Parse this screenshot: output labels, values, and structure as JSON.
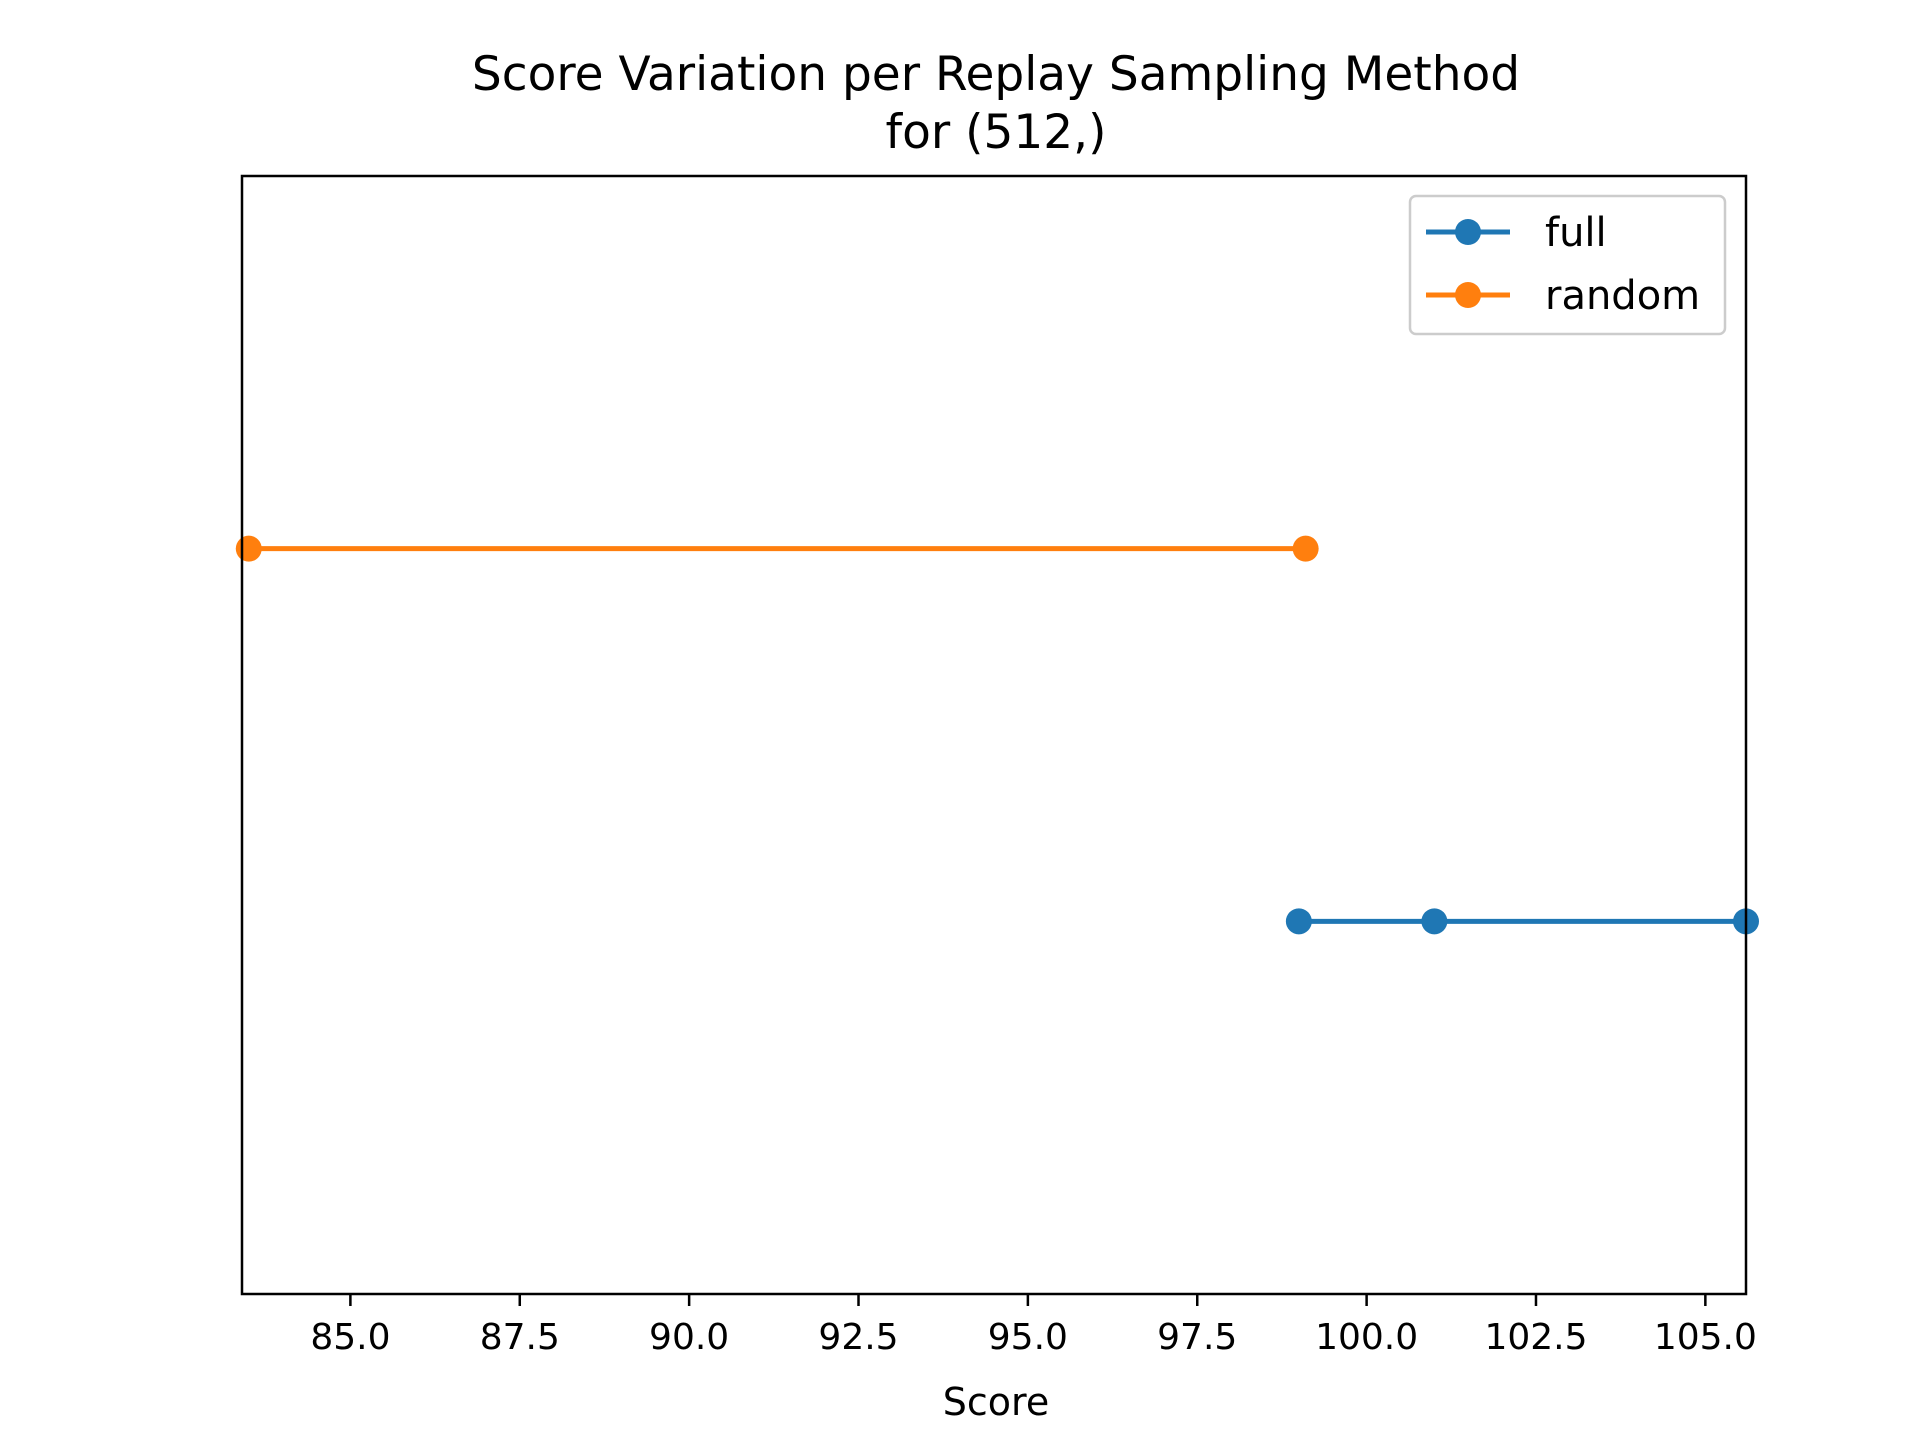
{
  "chart_data": {
    "type": "line",
    "title": "Score Variation per Replay Sampling Method",
    "subtitle": "for (512,)",
    "xlabel": "Score",
    "ylabel": "",
    "xlim": [
      83.4,
      105.6
    ],
    "xticks": [
      85.0,
      87.5,
      90.0,
      92.5,
      95.0,
      97.5,
      100.0,
      102.5,
      105.0
    ],
    "xtick_labels": [
      "85.0",
      "87.5",
      "90.0",
      "92.5",
      "95.0",
      "97.5",
      "100.0",
      "102.5",
      "105.0"
    ],
    "y_levels": 2,
    "legend_position": "top-right",
    "grid": false,
    "series": [
      {
        "name": "full",
        "color": "#1f77b4",
        "level": 0,
        "x": [
          99.0,
          101.0,
          105.6
        ]
      },
      {
        "name": "random",
        "color": "#ff7f0e",
        "level": 1,
        "x": [
          83.5,
          99.1
        ]
      }
    ]
  }
}
